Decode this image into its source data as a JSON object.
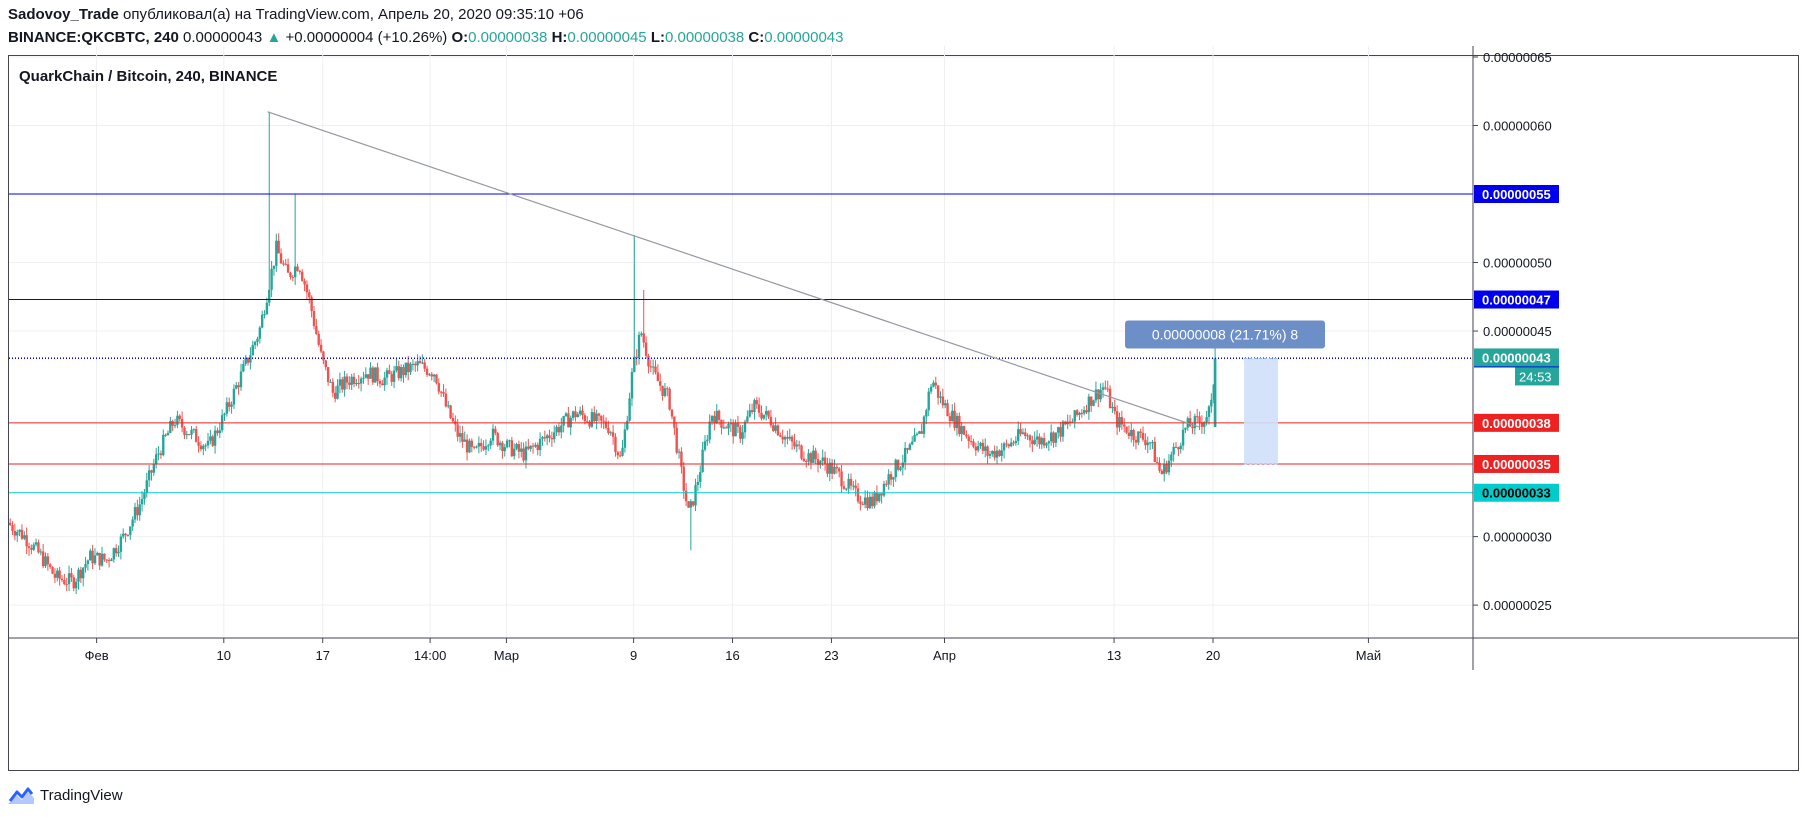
{
  "header": {
    "author": "Sadovoy_Trade",
    "published_text": " опубликовал(а) на TradingView.com, Апрель 20, 2020 09:35:10 +06",
    "symbol": "BINANCE:QKCBTC, 240",
    "last": "0.00000043",
    "change_arrow": "▲",
    "change": "+0.00000004 (+10.26%)",
    "open_label": "O:",
    "open": "0.00000038",
    "high_label": "H:",
    "high": "0.00000045",
    "low_label": "L:",
    "low": "0.00000038",
    "close_label": "C:",
    "close": "0.00000043"
  },
  "footer": {
    "brand": "TradingView"
  },
  "colors": {
    "up": "#26a69a",
    "down": "#ef5350",
    "grid": "#eef0f3",
    "blue_line": "#0000ee",
    "red_line": "#ee2222",
    "cyan_line": "#00e5e5",
    "trend": "#9598a1",
    "callout": "#6c8fc7",
    "range_box": "#cfe0f9"
  },
  "chart_data": {
    "type": "candlestick",
    "title": "QuarkChain / Bitcoin, 240, BINANCE",
    "ylim": [
      2.26e-07,
      6.58e-07
    ],
    "y_ticks": [
      "0.00000025",
      "0.00000030",
      "0.00000045",
      "0.00000050",
      "0.00000060",
      "0.00000065"
    ],
    "x_ticks": [
      "Фев",
      "10",
      "17",
      "14:00",
      "Мар",
      "9",
      "16",
      "23",
      "Апр",
      "13",
      "20",
      "Май"
    ],
    "x_tick_days": [
      1,
      10,
      17,
      24.6,
      30,
      39,
      46,
      53,
      61,
      73,
      80,
      91
    ],
    "x_range_days": [
      -5.2,
      98.4
    ],
    "horizontal_lines": [
      {
        "value": 5.5e-07,
        "label": "0.00000055",
        "color": "#0000ee"
      },
      {
        "value": 4.73e-07,
        "label": "0.00000047",
        "color": "#0000ee"
      },
      {
        "value": 4.3e-07,
        "label": "0.00000043",
        "color": "#0000ee",
        "dotted": true
      },
      {
        "value": 3.83e-07,
        "label": "0.00000038",
        "color": "#ee2222"
      },
      {
        "value": 3.53e-07,
        "label": "0.00000035",
        "color": "#ee2222"
      },
      {
        "value": 3.32e-07,
        "label": "0.00000033",
        "color": "#00cccc"
      }
    ],
    "last_price_label": "0.00000043",
    "countdown_label": "24:53",
    "trendline": {
      "from": {
        "day": 13.1,
        "value": 6.1e-07
      },
      "to": {
        "day": 79.0,
        "value": 3.8e-07
      }
    },
    "measure": {
      "label": "0.00000008 (21.71%) 8",
      "from_day": 82.2,
      "to_day": 84.6,
      "from_value": 3.53e-07,
      "to_value": 4.3e-07
    },
    "path": [
      [
        -5.2,
        3.1e-07
      ],
      [
        -4,
        3e-07
      ],
      [
        -2.8,
        2.85e-07
      ],
      [
        -1.8,
        2.7e-07
      ],
      [
        -0.6,
        2.67e-07
      ],
      [
        0.6,
        2.85e-07
      ],
      [
        1.8,
        2.83e-07
      ],
      [
        3.0,
        3e-07
      ],
      [
        4.2,
        3.25e-07
      ],
      [
        5.4,
        3.6e-07
      ],
      [
        6.6,
        3.85e-07
      ],
      [
        7.8,
        3.75e-07
      ],
      [
        9.0,
        3.65e-07
      ],
      [
        10.2,
        3.9e-07
      ],
      [
        11.4,
        4.2e-07
      ],
      [
        12.6,
        4.5e-07
      ],
      [
        13.8,
        5.1e-07
      ],
      [
        14.6,
        4.9e-07
      ],
      [
        15.4,
        5e-07
      ],
      [
        16.2,
        4.7e-07
      ],
      [
        17.0,
        4.3e-07
      ],
      [
        17.8,
        4.05e-07
      ],
      [
        19.0,
        4.15e-07
      ],
      [
        20.2,
        4.2e-07
      ],
      [
        21.4,
        4.15e-07
      ],
      [
        22.6,
        4.2e-07
      ],
      [
        23.8,
        4.25e-07
      ],
      [
        25.0,
        4.2e-07
      ],
      [
        25.8,
        3.95e-07
      ],
      [
        26.6,
        3.75e-07
      ],
      [
        27.8,
        3.6e-07
      ],
      [
        29.0,
        3.75e-07
      ],
      [
        30.2,
        3.65e-07
      ],
      [
        31.4,
        3.6e-07
      ],
      [
        32.6,
        3.7e-07
      ],
      [
        33.8,
        3.8e-07
      ],
      [
        35.0,
        3.9e-07
      ],
      [
        36.2,
        3.85e-07
      ],
      [
        37.4,
        3.8e-07
      ],
      [
        38.2,
        3.55e-07
      ],
      [
        39.0,
        4.2e-07
      ],
      [
        39.6,
        4.5e-07
      ],
      [
        40.4,
        4.2e-07
      ],
      [
        41.6,
        4e-07
      ],
      [
        42.4,
        3.5e-07
      ],
      [
        43.0,
        3.15e-07
      ],
      [
        43.6,
        3.4e-07
      ],
      [
        44.6,
        3.9e-07
      ],
      [
        45.8,
        3.8e-07
      ],
      [
        46.6,
        3.75e-07
      ],
      [
        47.6,
        3.95e-07
      ],
      [
        48.8,
        3.85e-07
      ],
      [
        50.0,
        3.7e-07
      ],
      [
        51.2,
        3.6e-07
      ],
      [
        52.4,
        3.55e-07
      ],
      [
        53.6,
        3.45e-07
      ],
      [
        54.8,
        3.3e-07
      ],
      [
        56.0,
        3.25e-07
      ],
      [
        57.2,
        3.45e-07
      ],
      [
        58.4,
        3.6e-07
      ],
      [
        59.4,
        3.75e-07
      ],
      [
        60.2,
        4.15e-07
      ],
      [
        60.8,
        4e-07
      ],
      [
        61.8,
        3.85e-07
      ],
      [
        63.0,
        3.7e-07
      ],
      [
        64.2,
        3.6e-07
      ],
      [
        65.4,
        3.65e-07
      ],
      [
        66.6,
        3.75e-07
      ],
      [
        67.8,
        3.7e-07
      ],
      [
        69.0,
        3.75e-07
      ],
      [
        70.2,
        3.85e-07
      ],
      [
        71.4,
        4e-07
      ],
      [
        72.4,
        4.1e-07
      ],
      [
        73.2,
        3.85e-07
      ],
      [
        74.4,
        3.75e-07
      ],
      [
        75.6,
        3.7e-07
      ],
      [
        76.4,
        3.45e-07
      ],
      [
        77.2,
        3.6e-07
      ],
      [
        78.2,
        3.8e-07
      ],
      [
        79.4,
        3.85e-07
      ],
      [
        80.0,
        3.95e-07
      ],
      [
        80.25,
        4.3e-07
      ]
    ]
  }
}
